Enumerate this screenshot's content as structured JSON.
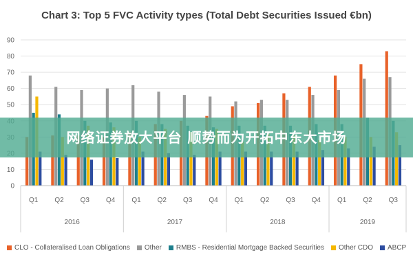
{
  "banner": {
    "text": "网络证券放大平台 顺势而为开拓中东大市场"
  },
  "chart_data": {
    "type": "bar",
    "title": "Chart 3: Top 5 FVC Activity types (Total Debt Securities Issued €bn)",
    "ylim": [
      0,
      90
    ],
    "yticks": [
      0,
      10,
      20,
      30,
      40,
      50,
      60,
      70,
      80,
      90
    ],
    "grid": true,
    "legend_position": "bottom",
    "categories": [
      "Q1",
      "Q2",
      "Q3",
      "Q4",
      "Q1",
      "Q2",
      "Q3",
      "Q4",
      "Q1",
      "Q2",
      "Q3",
      "Q4",
      "Q1",
      "Q2",
      "Q3"
    ],
    "groups": [
      {
        "label": "2016",
        "count": 4
      },
      {
        "label": "2017",
        "count": 4
      },
      {
        "label": "2018",
        "count": 4
      },
      {
        "label": "2019",
        "count": 3
      }
    ],
    "series": [
      {
        "name": "CLO - Collateralised Loan Obligations",
        "color": "#E8622A",
        "values": [
          30,
          31,
          31,
          30,
          33,
          38,
          40,
          43,
          49,
          51,
          57,
          61,
          68,
          75,
          83
        ]
      },
      {
        "name": "Other",
        "color": "#9A9A9A",
        "values": [
          68,
          61,
          59,
          60,
          62,
          58,
          56,
          55,
          52,
          53,
          53,
          56,
          59,
          66,
          67
        ]
      },
      {
        "name": "RMBS - Residential Mortgage Backed Securities",
        "color": "#1E7F8C",
        "values": [
          45,
          44,
          40,
          39,
          40,
          38,
          37,
          36,
          37,
          37,
          37,
          38,
          38,
          42,
          40
        ]
      },
      {
        "name": "Other CDO",
        "color": "#F5B800",
        "values": [
          55,
          30,
          37,
          36,
          30,
          35,
          33,
          35,
          27,
          32,
          31,
          28,
          30,
          30,
          33
        ]
      },
      {
        "name": "ABCP",
        "color": "#2D4DA0",
        "values": [
          21,
          19,
          16,
          17,
          21,
          20,
          19,
          21,
          21,
          21,
          21,
          22,
          23,
          24,
          25
        ]
      }
    ]
  }
}
